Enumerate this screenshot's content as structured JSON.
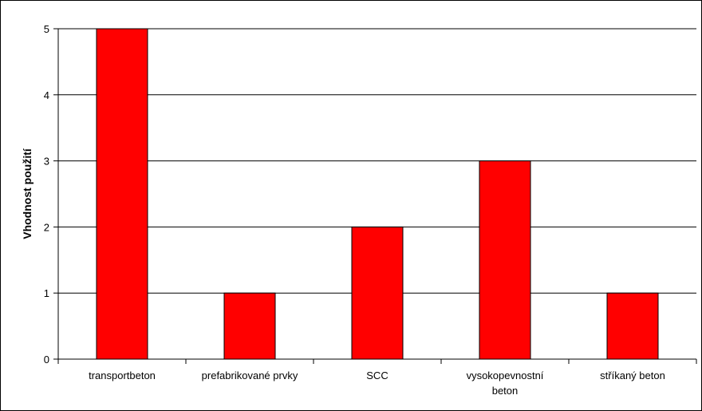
{
  "chart_data": {
    "type": "bar",
    "title": "",
    "xlabel": "",
    "ylabel": "Vhodnost použití",
    "categories": [
      [
        "transportbeton"
      ],
      [
        "prefabrikované prvky"
      ],
      [
        "SCC"
      ],
      [
        "vysokopevnostní",
        "beton"
      ],
      [
        "stříkaný beton"
      ]
    ],
    "values": [
      5,
      1,
      2,
      3,
      1
    ],
    "ylim": [
      0,
      5
    ],
    "yticks": [
      0,
      1,
      2,
      3,
      4,
      5
    ],
    "grid": true,
    "legend": "none",
    "bar_color": "#FF0000",
    "bar_edge_color": "#000000",
    "grid_color": "#000000"
  }
}
